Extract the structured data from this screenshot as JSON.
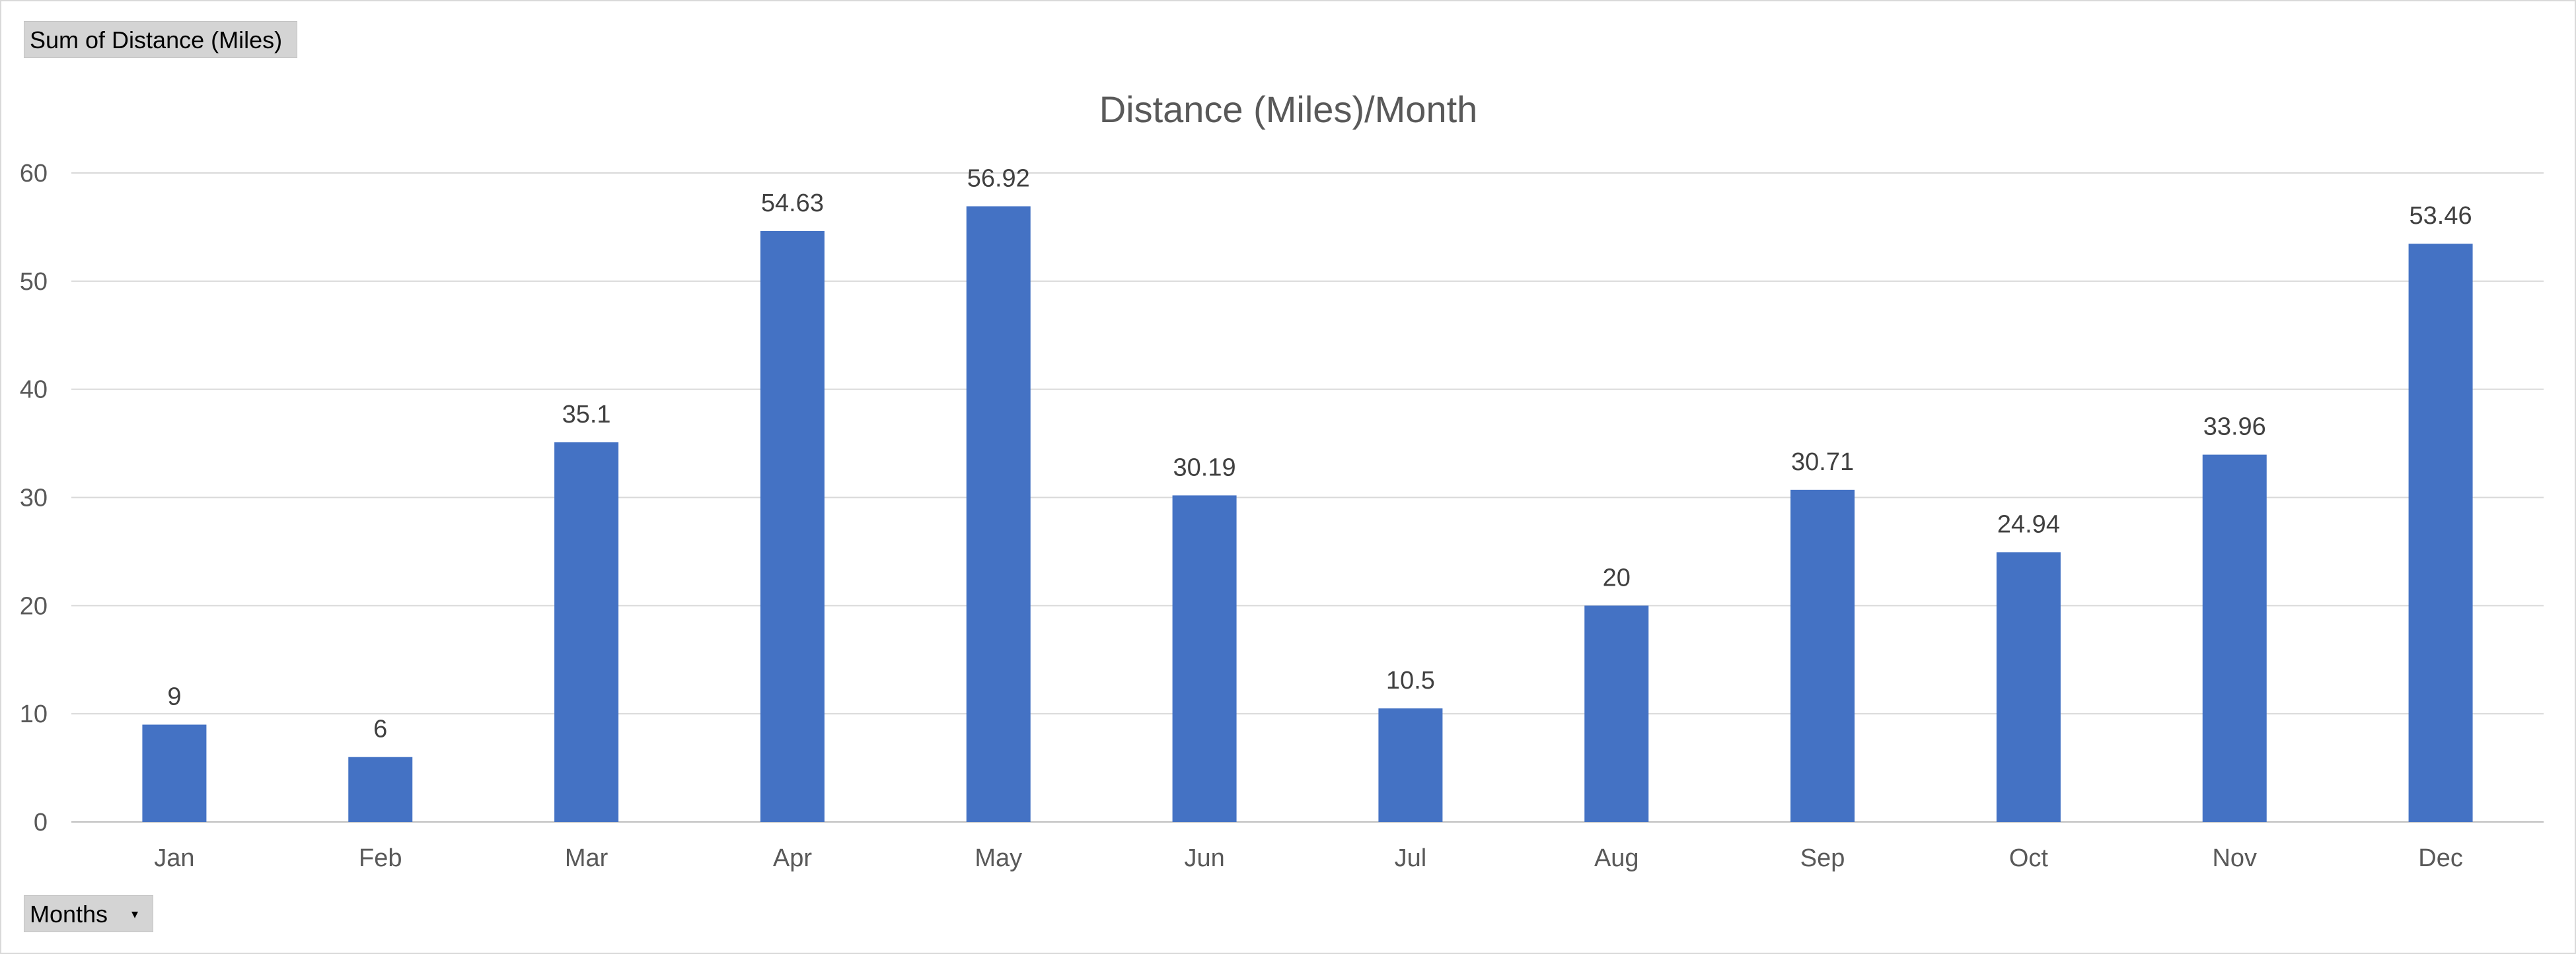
{
  "pivot": {
    "value_field_label": "Sum of Distance (Miles)",
    "axis_field_label": "Months",
    "axis_field_dropdown_icon": "dropdown-arrow-icon"
  },
  "colors": {
    "bar": "#4472C4",
    "gridline": "#d9d9d9",
    "axis_text": "#595959",
    "data_label_text": "#404040",
    "field_button_bg": "#d4d4d4"
  },
  "chart_data": {
    "type": "bar",
    "title": "Distance (Miles)/Month",
    "xlabel": "",
    "ylabel": "",
    "categories": [
      "Jan",
      "Feb",
      "Mar",
      "Apr",
      "May",
      "Jun",
      "Jul",
      "Aug",
      "Sep",
      "Oct",
      "Nov",
      "Dec"
    ],
    "values": [
      9,
      6,
      35.1,
      54.63,
      56.92,
      30.19,
      10.5,
      20,
      30.71,
      24.94,
      33.96,
      53.46
    ],
    "data_labels": [
      "9",
      "6",
      "35.1",
      "54.63",
      "56.92",
      "30.19",
      "10.5",
      "20",
      "30.71",
      "24.94",
      "33.96",
      "53.46"
    ],
    "ylim": [
      0,
      60
    ],
    "yticks": [
      0,
      10,
      20,
      30,
      40,
      50,
      60
    ],
    "ytick_labels": [
      "0",
      "10",
      "20",
      "30",
      "40",
      "50",
      "60"
    ],
    "grid": true,
    "legend": "none"
  }
}
